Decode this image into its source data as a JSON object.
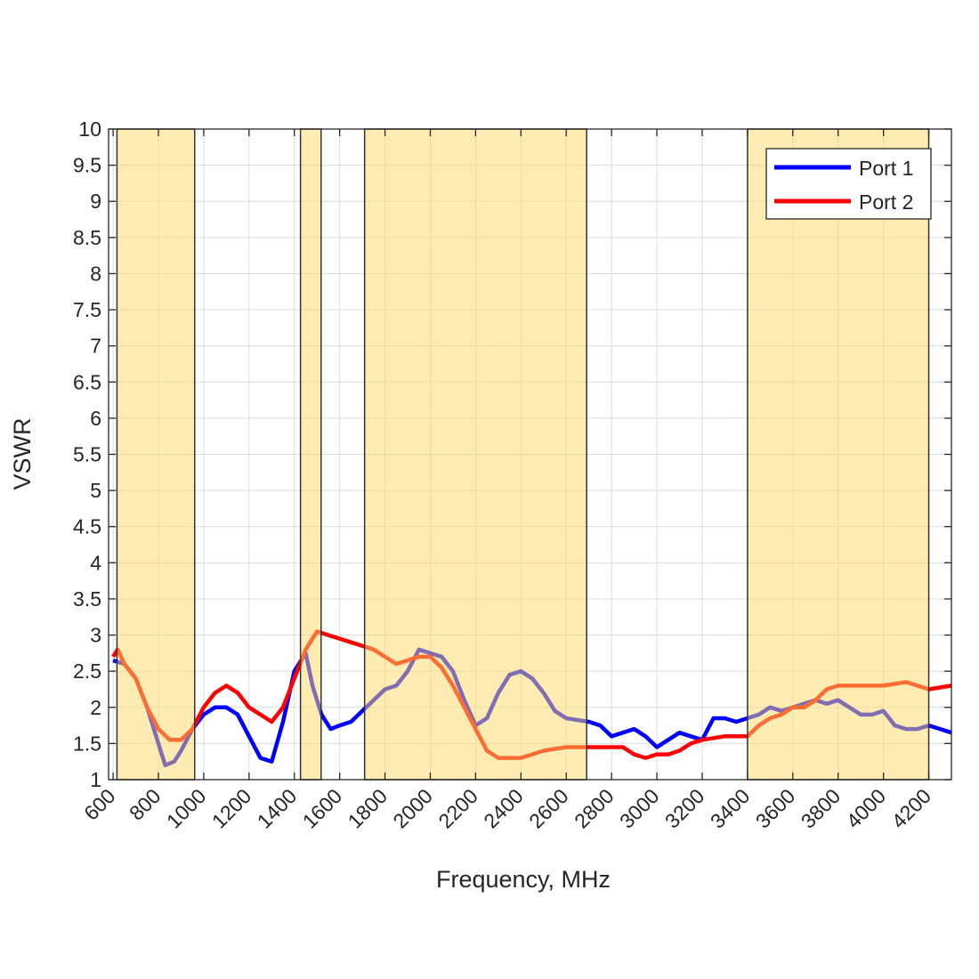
{
  "chart_data": {
    "type": "line",
    "title": "",
    "xlabel": "Frequency, MHz",
    "ylabel": "VSWR",
    "xlim": [
      580,
      4300
    ],
    "ylim": [
      1,
      10
    ],
    "grid": true,
    "legend_placement": "top-right",
    "xticks": [
      600,
      800,
      1000,
      1200,
      1400,
      1600,
      1800,
      2000,
      2200,
      2400,
      2600,
      2800,
      3000,
      3200,
      3400,
      3600,
      3800,
      4000,
      4200
    ],
    "xtick_labels": [
      "600",
      "800",
      "1000",
      "1200",
      "1400",
      "1600",
      "1800",
      "2000",
      "2200",
      "2400",
      "2600",
      "2800",
      "3000",
      "3200",
      "3400",
      "3600",
      "3800",
      "4000",
      "4200"
    ],
    "yticks": [
      1,
      1.5,
      2,
      2.5,
      3,
      3.5,
      4,
      4.5,
      5,
      5.5,
      6,
      6.5,
      7,
      7.5,
      8,
      8.5,
      9,
      9.5,
      10
    ],
    "ytick_labels": [
      "1",
      "1.5",
      "2",
      "2.5",
      "3",
      "3.5",
      "4",
      "4.5",
      "5",
      "5.5",
      "6",
      "6.5",
      "7",
      "7.5",
      "8",
      "8.5",
      "9",
      "9.5",
      "10"
    ],
    "bands": [
      [
        617,
        960
      ],
      [
        1427,
        1518
      ],
      [
        1710,
        2690
      ],
      [
        3400,
        4200
      ]
    ],
    "band_color": "#FFD966",
    "series": [
      {
        "name": "Port 1",
        "color": "#0000FF",
        "x": [
          600,
          650,
          700,
          750,
          800,
          830,
          870,
          900,
          950,
          1000,
          1050,
          1100,
          1150,
          1200,
          1250,
          1300,
          1350,
          1400,
          1450,
          1480,
          1520,
          1560,
          1600,
          1650,
          1700,
          1750,
          1800,
          1850,
          1900,
          1950,
          2000,
          2050,
          2100,
          2150,
          2200,
          2250,
          2300,
          2350,
          2400,
          2450,
          2500,
          2550,
          2600,
          2700,
          2750,
          2800,
          2850,
          2900,
          2950,
          3000,
          3050,
          3100,
          3150,
          3200,
          3250,
          3300,
          3350,
          3400,
          3450,
          3500,
          3550,
          3600,
          3650,
          3700,
          3750,
          3800,
          3850,
          3900,
          3950,
          4000,
          4050,
          4100,
          4150,
          4200,
          4250,
          4300
        ],
        "y": [
          2.65,
          2.6,
          2.4,
          2.0,
          1.5,
          1.2,
          1.25,
          1.4,
          1.7,
          1.9,
          2.0,
          2.0,
          1.9,
          1.6,
          1.3,
          1.25,
          1.8,
          2.5,
          2.75,
          2.3,
          1.9,
          1.7,
          1.75,
          1.8,
          1.95,
          2.1,
          2.25,
          2.3,
          2.5,
          2.8,
          2.75,
          2.7,
          2.5,
          2.1,
          1.75,
          1.85,
          2.2,
          2.45,
          2.5,
          2.4,
          2.2,
          1.95,
          1.85,
          1.8,
          1.75,
          1.6,
          1.65,
          1.7,
          1.6,
          1.45,
          1.55,
          1.65,
          1.6,
          1.55,
          1.85,
          1.85,
          1.8,
          1.85,
          1.9,
          2.0,
          1.95,
          2.0,
          2.05,
          2.1,
          2.05,
          2.1,
          2.0,
          1.9,
          1.9,
          1.95,
          1.75,
          1.7,
          1.7,
          1.75,
          1.7,
          1.65
        ]
      },
      {
        "name": "Port 2",
        "color": "#FF0000",
        "x": [
          600,
          620,
          650,
          700,
          750,
          800,
          850,
          900,
          950,
          1000,
          1050,
          1100,
          1150,
          1200,
          1250,
          1300,
          1350,
          1400,
          1450,
          1500,
          1550,
          1600,
          1650,
          1700,
          1750,
          1800,
          1850,
          1900,
          1950,
          2000,
          2050,
          2100,
          2150,
          2200,
          2250,
          2300,
          2350,
          2400,
          2450,
          2500,
          2600,
          2700,
          2800,
          2850,
          2900,
          2950,
          3000,
          3050,
          3100,
          3150,
          3200,
          3300,
          3400,
          3450,
          3500,
          3550,
          3600,
          3650,
          3700,
          3750,
          3800,
          3900,
          4000,
          4100,
          4150,
          4200,
          4300
        ],
        "y": [
          2.7,
          2.8,
          2.6,
          2.4,
          2.0,
          1.7,
          1.55,
          1.55,
          1.7,
          2.0,
          2.2,
          2.3,
          2.2,
          2.0,
          1.9,
          1.8,
          2.0,
          2.4,
          2.8,
          3.05,
          3.0,
          2.95,
          2.9,
          2.85,
          2.8,
          2.7,
          2.6,
          2.65,
          2.7,
          2.7,
          2.55,
          2.3,
          2.0,
          1.7,
          1.4,
          1.3,
          1.3,
          1.3,
          1.35,
          1.4,
          1.45,
          1.45,
          1.45,
          1.45,
          1.35,
          1.3,
          1.35,
          1.35,
          1.4,
          1.5,
          1.55,
          1.6,
          1.6,
          1.75,
          1.85,
          1.9,
          2.0,
          2.0,
          2.1,
          2.25,
          2.3,
          2.3,
          2.3,
          2.35,
          2.3,
          2.25,
          2.3
        ]
      }
    ]
  }
}
